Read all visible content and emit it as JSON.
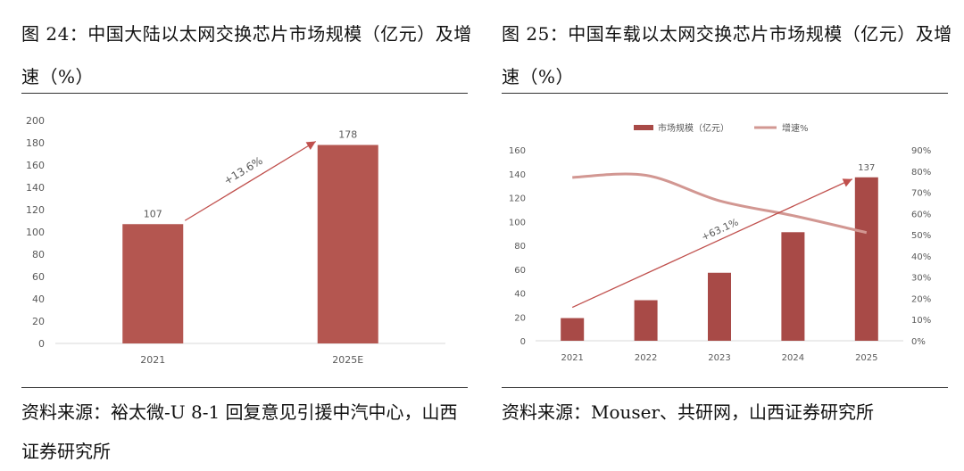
{
  "left": {
    "title": "图 24：中国大陆以太网交换芯片市场规模（亿元）及增速（%）",
    "source": "资料来源：裕太微-U 8-1 回复意见引援中汽中心，山西证券研究所"
  },
  "right": {
    "title": "图 25：中国车载以太网交换芯片市场规模（亿元）及增速（%）",
    "source": "资料来源：Mouser、共研网，山西证券研究所"
  },
  "colors": {
    "bar": "#B45650",
    "bar_right": "#A84A47",
    "line": "#D29792",
    "arrow": "#C0504D"
  },
  "chart_data": [
    {
      "type": "bar",
      "categories": [
        "2021",
        "2025E"
      ],
      "values": [
        107,
        178
      ],
      "ylim": [
        0,
        200
      ],
      "yticks": [
        0,
        20,
        40,
        60,
        80,
        100,
        120,
        140,
        160,
        180,
        200
      ],
      "annotation": "+13.6%"
    },
    {
      "type": "bar+line",
      "categories": [
        "2021",
        "2022",
        "2023",
        "2024",
        "2025"
      ],
      "series": [
        {
          "name": "市场规模（亿元）",
          "type": "bar",
          "axis": "left",
          "values": [
            19,
            34,
            57,
            91,
            137
          ]
        },
        {
          "name": "增速%",
          "type": "line",
          "axis": "right",
          "values": [
            77,
            78,
            66,
            59,
            51
          ]
        }
      ],
      "ylim_left": [
        0,
        160
      ],
      "ylim_right": [
        0,
        90
      ],
      "yticks_left": [
        0,
        20,
        40,
        60,
        80,
        100,
        120,
        140,
        160
      ],
      "yticks_right": [
        "0%",
        "10%",
        "20%",
        "30%",
        "40%",
        "50%",
        "60%",
        "70%",
        "80%",
        "90%"
      ],
      "data_label": "137",
      "annotation": "+63.1%"
    }
  ]
}
